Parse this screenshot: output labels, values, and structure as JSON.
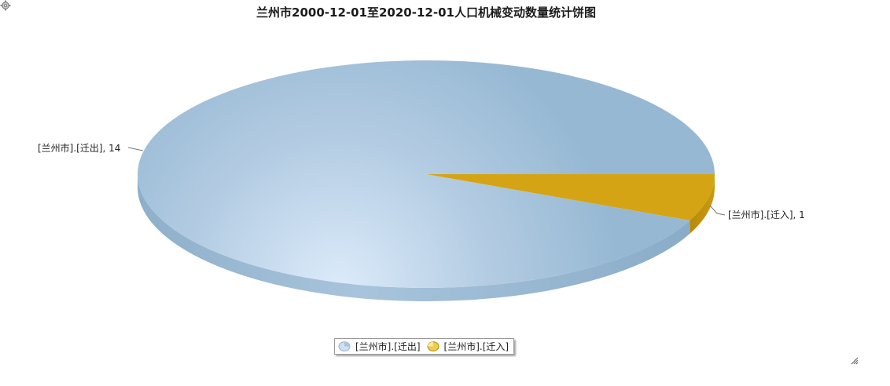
{
  "toolbar": {
    "settings_icon": "gear-icon"
  },
  "chart_data": {
    "type": "pie",
    "title": "兰州市2000-12-01至2020-12-01人口机械变动数量统计饼图",
    "labels": [
      "[兰州市].[迁出]",
      "[兰州市].[迁入]"
    ],
    "values": [
      14,
      1
    ],
    "slice_labels": [
      "[兰州市].[迁出], 14",
      "[兰州市].[迁入], 1"
    ],
    "colors": [
      "#98b9d4",
      "#d4a415"
    ],
    "legend_position": "bottom",
    "three_d": true
  },
  "resize_icon": "resize-grip-icon"
}
